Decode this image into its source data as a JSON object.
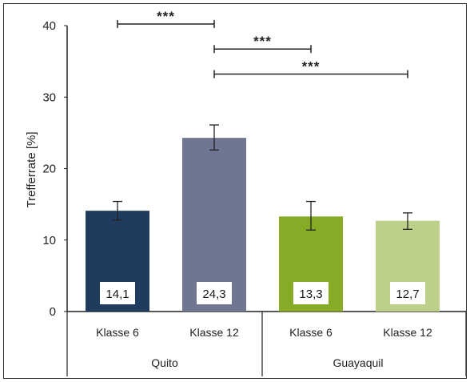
{
  "chart_data": {
    "type": "bar",
    "ylabel": "Trefferrate [%]",
    "ylim": [
      0,
      40
    ],
    "yticks": [
      0,
      10,
      20,
      30,
      40
    ],
    "grid": false,
    "bars": [
      {
        "category": "Klasse 6",
        "group": "Quito",
        "value": 14.1,
        "label": "14,1",
        "err_low": 12.8,
        "err_high": 15.4,
        "color": "#1f3b5e"
      },
      {
        "category": "Klasse 12",
        "group": "Quito",
        "value": 24.3,
        "label": "24,3",
        "err_low": 22.6,
        "err_high": 26.1,
        "color": "#6e7692"
      },
      {
        "category": "Klasse 6",
        "group": "Guayaquil",
        "value": 13.3,
        "label": "13,3",
        "err_low": 11.4,
        "err_high": 15.4,
        "color": "#86ab26"
      },
      {
        "category": "Klasse 12",
        "group": "Guayaquil",
        "value": 12.7,
        "label": "12,7",
        "err_low": 11.5,
        "err_high": 13.8,
        "color": "#bcd08a"
      }
    ],
    "groups": [
      "Quito",
      "Guayaquil"
    ],
    "significance": [
      {
        "from": 0,
        "to": 1,
        "y": 40,
        "label": "***"
      },
      {
        "from": 1,
        "to": 2,
        "y": 36.5,
        "label": "***"
      },
      {
        "from": 1,
        "to": 3,
        "y": 33,
        "label": "***"
      }
    ]
  }
}
